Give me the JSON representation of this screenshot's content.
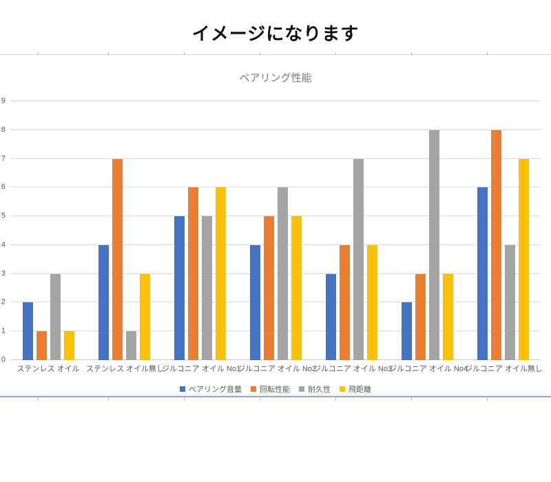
{
  "page": {
    "heading": "イメージになります"
  },
  "chart_data": {
    "type": "bar",
    "title": "ベアリング性能",
    "categories": [
      "ステンレス オイル",
      "ステンレス オイル無し",
      "ジルコニア オイル No1",
      "ジルコニア オイル No2",
      "ジルコニア オイル No3",
      "ジルコニア オイル No4",
      "ジルコニア オイル無し"
    ],
    "series": [
      {
        "name": "ベアリング音量",
        "color": "#4472C4",
        "values": [
          2,
          4,
          5,
          4,
          3,
          2,
          6
        ]
      },
      {
        "name": "回転性能",
        "color": "#ED7D31",
        "values": [
          1,
          7,
          6,
          5,
          4,
          3,
          8
        ]
      },
      {
        "name": "耐久性",
        "color": "#A5A5A5",
        "values": [
          3,
          1,
          5,
          6,
          7,
          8,
          4
        ]
      },
      {
        "name": "飛距離",
        "color": "#FFC000",
        "values": [
          1,
          3,
          6,
          5,
          4,
          3,
          7
        ]
      }
    ],
    "xlabel": "",
    "ylabel": "",
    "ylim": [
      0,
      9
    ],
    "yticks": [
      0,
      1,
      2,
      3,
      4,
      5,
      6,
      7,
      8,
      9
    ],
    "grid": true,
    "legend_position": "bottom",
    "title_color": "#7a7a7a",
    "axis_text_color": "#595959",
    "gridline_color": "#d9d9d9"
  }
}
